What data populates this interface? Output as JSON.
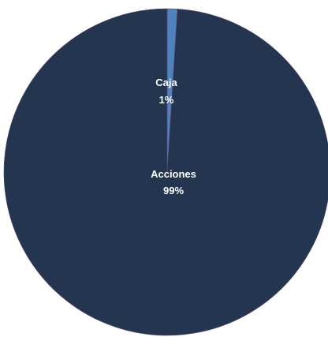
{
  "chart_data": {
    "type": "pie",
    "title": "",
    "slices": [
      {
        "label": "Caja",
        "value": 1,
        "percent_label": "1%",
        "color": "#4F81BD"
      },
      {
        "label": "Acciones",
        "value": 99,
        "percent_label": "99%",
        "color": "#243550"
      }
    ],
    "legend": "none",
    "data_labels": "inside"
  }
}
